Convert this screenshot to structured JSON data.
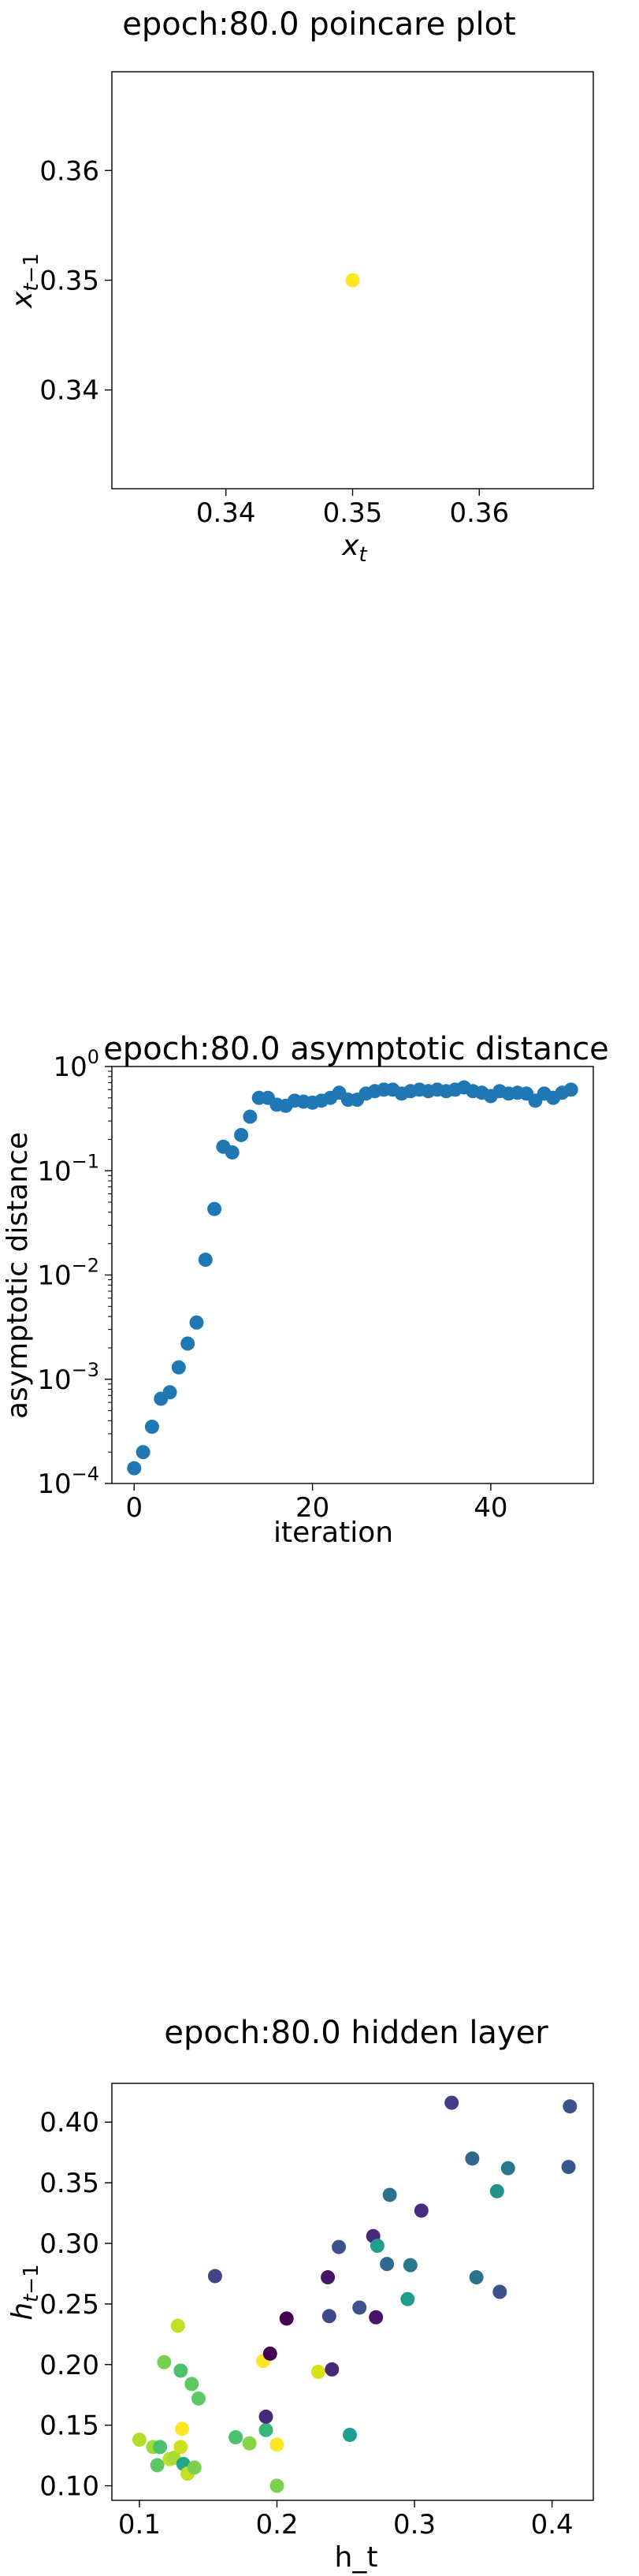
{
  "chart_data": [
    {
      "type": "scatter",
      "title": "epoch:80.0 poincare plot",
      "xlabel": "x_t",
      "ylabel": "x_{t-1}",
      "xlim": [
        0.331,
        0.369
      ],
      "ylim": [
        0.331,
        0.369
      ],
      "xticks": [
        0.34,
        0.35,
        0.36
      ],
      "xtick_labels": [
        "0.34",
        "0.35",
        "0.36"
      ],
      "yticks": [
        0.34,
        0.35,
        0.36
      ],
      "ytick_labels": [
        "0.34",
        "0.35",
        "0.36"
      ],
      "grid": false,
      "points": [
        {
          "x": 0.35,
          "y": 0.35
        }
      ],
      "color": "#fde725"
    },
    {
      "type": "scatter",
      "title": "epoch:80.0 asymptotic distance",
      "xlabel": "iteration",
      "ylabel": "asymptotic distance",
      "yscale": "log",
      "xlim": [
        -2.5,
        51.5
      ],
      "ylim": [
        0.0001,
        1
      ],
      "xticks": [
        0,
        20,
        40
      ],
      "xtick_labels": [
        "0",
        "20",
        "40"
      ],
      "yticks": [
        0.0001,
        0.001,
        0.01,
        0.1,
        1
      ],
      "ytick_labels": [
        {
          "base": "10",
          "exp": "−4"
        },
        {
          "base": "10",
          "exp": "−3"
        },
        {
          "base": "10",
          "exp": "−2"
        },
        {
          "base": "10",
          "exp": "−1"
        },
        {
          "base": "10",
          "exp": "0"
        }
      ],
      "grid": false,
      "color": "#1f77b4",
      "x": [
        0,
        1,
        2,
        3,
        4,
        5,
        6,
        7,
        8,
        9,
        10,
        11,
        12,
        13,
        14,
        15,
        16,
        17,
        18,
        19,
        20,
        21,
        22,
        23,
        24,
        25,
        26,
        27,
        28,
        29,
        30,
        31,
        32,
        33,
        34,
        35,
        36,
        37,
        38,
        39,
        40,
        41,
        42,
        43,
        44,
        45,
        46,
        47,
        48,
        49
      ],
      "y": [
        0.00014,
        0.0002,
        0.00035,
        0.00065,
        0.00075,
        0.0013,
        0.0022,
        0.0035,
        0.014,
        0.043,
        0.17,
        0.15,
        0.22,
        0.33,
        0.5,
        0.5,
        0.43,
        0.42,
        0.47,
        0.46,
        0.45,
        0.47,
        0.5,
        0.56,
        0.48,
        0.48,
        0.55,
        0.58,
        0.6,
        0.6,
        0.55,
        0.58,
        0.6,
        0.58,
        0.6,
        0.58,
        0.6,
        0.63,
        0.58,
        0.56,
        0.52,
        0.58,
        0.55,
        0.56,
        0.55,
        0.47,
        0.55,
        0.5,
        0.56,
        0.6
      ]
    },
    {
      "type": "scatter",
      "title": "epoch:80.0 hidden layer",
      "xlabel": "h_t",
      "ylabel": "h_{t-1}",
      "xlim": [
        0.08,
        0.43
      ],
      "ylim": [
        0.088,
        0.432
      ],
      "xticks": [
        0.1,
        0.2,
        0.3,
        0.4
      ],
      "xtick_labels": [
        "0.1",
        "0.2",
        "0.3",
        "0.4"
      ],
      "yticks": [
        0.1,
        0.15,
        0.2,
        0.25,
        0.3,
        0.35,
        0.4
      ],
      "ytick_labels": [
        "0.10",
        "0.15",
        "0.20",
        "0.25",
        "0.30",
        "0.35",
        "0.40"
      ],
      "grid": false,
      "colormap": "viridis",
      "points": [
        {
          "x": 0.1,
          "y": 0.138,
          "color": "#b5de2b"
        },
        {
          "x": 0.11,
          "y": 0.132,
          "color": "#a0da39"
        },
        {
          "x": 0.113,
          "y": 0.117,
          "color": "#5ec962"
        },
        {
          "x": 0.115,
          "y": 0.132,
          "color": "#4ac16d"
        },
        {
          "x": 0.118,
          "y": 0.202,
          "color": "#7ad151"
        },
        {
          "x": 0.122,
          "y": 0.122,
          "color": "#bddf26"
        },
        {
          "x": 0.125,
          "y": 0.123,
          "color": "#a8db34"
        },
        {
          "x": 0.128,
          "y": 0.232,
          "color": "#c2df23"
        },
        {
          "x": 0.13,
          "y": 0.195,
          "color": "#4ac16d"
        },
        {
          "x": 0.13,
          "y": 0.132,
          "color": "#cde11d"
        },
        {
          "x": 0.131,
          "y": 0.147,
          "color": "#fde725"
        },
        {
          "x": 0.132,
          "y": 0.118,
          "color": "#22a884"
        },
        {
          "x": 0.135,
          "y": 0.11,
          "color": "#c2df23"
        },
        {
          "x": 0.138,
          "y": 0.184,
          "color": "#5ec962"
        },
        {
          "x": 0.14,
          "y": 0.115,
          "color": "#7ad151"
        },
        {
          "x": 0.143,
          "y": 0.172,
          "color": "#5ec962"
        },
        {
          "x": 0.155,
          "y": 0.273,
          "color": "#414487"
        },
        {
          "x": 0.17,
          "y": 0.14,
          "color": "#4ac16d"
        },
        {
          "x": 0.18,
          "y": 0.135,
          "color": "#86d549"
        },
        {
          "x": 0.19,
          "y": 0.203,
          "color": "#fde725"
        },
        {
          "x": 0.192,
          "y": 0.146,
          "color": "#35b779"
        },
        {
          "x": 0.192,
          "y": 0.157,
          "color": "#482878"
        },
        {
          "x": 0.195,
          "y": 0.209,
          "color": "#440154"
        },
        {
          "x": 0.2,
          "y": 0.1,
          "color": "#7ad151"
        },
        {
          "x": 0.2,
          "y": 0.134,
          "color": "#fde725"
        },
        {
          "x": 0.207,
          "y": 0.238,
          "color": "#440154"
        },
        {
          "x": 0.23,
          "y": 0.194,
          "color": "#d8e219"
        },
        {
          "x": 0.237,
          "y": 0.272,
          "color": "#481467"
        },
        {
          "x": 0.238,
          "y": 0.24,
          "color": "#3e4989"
        },
        {
          "x": 0.24,
          "y": 0.196,
          "color": "#482878"
        },
        {
          "x": 0.245,
          "y": 0.297,
          "color": "#3b528b"
        },
        {
          "x": 0.253,
          "y": 0.142,
          "color": "#1f9e89"
        },
        {
          "x": 0.26,
          "y": 0.247,
          "color": "#3b528b"
        },
        {
          "x": 0.27,
          "y": 0.306,
          "color": "#482878"
        },
        {
          "x": 0.272,
          "y": 0.239,
          "color": "#481467"
        },
        {
          "x": 0.273,
          "y": 0.298,
          "color": "#1f9e89"
        },
        {
          "x": 0.28,
          "y": 0.283,
          "color": "#31688e"
        },
        {
          "x": 0.282,
          "y": 0.34,
          "color": "#2c728e"
        },
        {
          "x": 0.295,
          "y": 0.254,
          "color": "#1f9e89"
        },
        {
          "x": 0.297,
          "y": 0.282,
          "color": "#2a788e"
        },
        {
          "x": 0.305,
          "y": 0.327,
          "color": "#472d7b"
        },
        {
          "x": 0.327,
          "y": 0.416,
          "color": "#433e85"
        },
        {
          "x": 0.342,
          "y": 0.37,
          "color": "#31688e"
        },
        {
          "x": 0.345,
          "y": 0.272,
          "color": "#2c728e"
        },
        {
          "x": 0.36,
          "y": 0.343,
          "color": "#21918c"
        },
        {
          "x": 0.362,
          "y": 0.26,
          "color": "#3b528b"
        },
        {
          "x": 0.368,
          "y": 0.362,
          "color": "#2a788e"
        },
        {
          "x": 0.412,
          "y": 0.363,
          "color": "#39568c"
        },
        {
          "x": 0.413,
          "y": 0.413,
          "color": "#3b528b"
        }
      ]
    }
  ]
}
